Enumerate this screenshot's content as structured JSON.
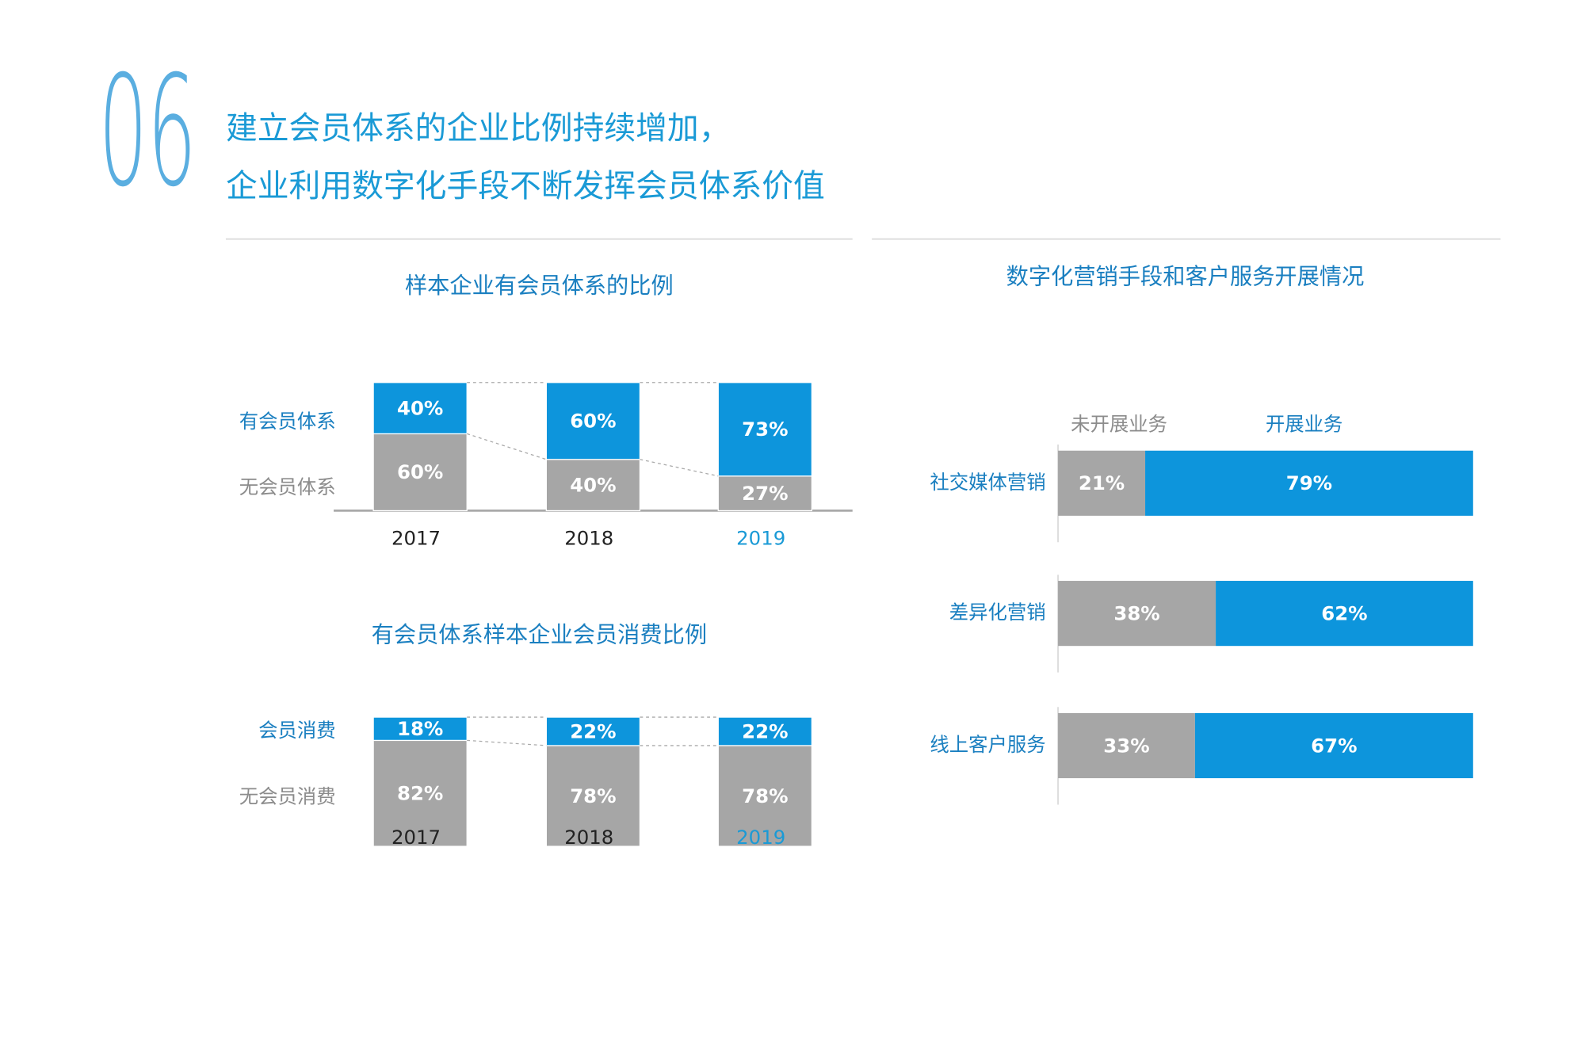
{
  "header": {
    "number": "06",
    "title_lines": [
      "建立会员体系的企业比例持续增加，",
      "企业利用数字化手段不断发挥会员体系价值"
    ]
  },
  "chart_data": [
    {
      "type": "bar",
      "stacked": true,
      "horizontal": false,
      "title": "样本企业有会员体系的比例",
      "categories": [
        "2017",
        "2018",
        "2019"
      ],
      "category_colors": [
        "#222222",
        "#222222",
        "#1a9ad6"
      ],
      "series": [
        {
          "name": "有会员体系",
          "color": "#0d95dc",
          "label_color": "#1a7fc0",
          "values": [
            40,
            60,
            73
          ],
          "value_labels": [
            "40%",
            "60%",
            "73%"
          ]
        },
        {
          "name": "无会员体系",
          "color": "#a6a6a6",
          "label_color": "#8c8c8c",
          "values": [
            60,
            40,
            27
          ],
          "value_labels": [
            "60%",
            "40%",
            "27%"
          ]
        }
      ]
    },
    {
      "type": "bar",
      "stacked": true,
      "horizontal": false,
      "title": "有会员体系样本企业会员消费比例",
      "categories": [
        "2017",
        "2018",
        "2019"
      ],
      "category_colors": [
        "#222222",
        "#222222",
        "#1a9ad6"
      ],
      "series": [
        {
          "name": "会员消费",
          "color": "#0d95dc",
          "label_color": "#1a7fc0",
          "values": [
            18,
            22,
            22
          ],
          "value_labels": [
            "18%",
            "22%",
            "22%"
          ]
        },
        {
          "name": "无会员消费",
          "color": "#a6a6a6",
          "label_color": "#8c8c8c",
          "values": [
            82,
            78,
            78
          ],
          "value_labels": [
            "82%",
            "78%",
            "78%"
          ]
        }
      ]
    },
    {
      "type": "bar",
      "stacked": true,
      "horizontal": true,
      "title": "数字化营销手段和客户服务开展情况",
      "categories": [
        "社交媒体营销",
        "差异化营销",
        "线上客户服务"
      ],
      "series": [
        {
          "name": "未开展业务",
          "color": "#a6a6a6",
          "label_color": "#8c8c8c",
          "values": [
            21,
            38,
            33
          ],
          "value_labels": [
            "21%",
            "38%",
            "33%"
          ]
        },
        {
          "name": "开展业务",
          "color": "#0d95dc",
          "label_color": "#1a7fc0",
          "values": [
            79,
            62,
            67
          ],
          "value_labels": [
            "79%",
            "62%",
            "67%"
          ]
        }
      ]
    }
  ]
}
